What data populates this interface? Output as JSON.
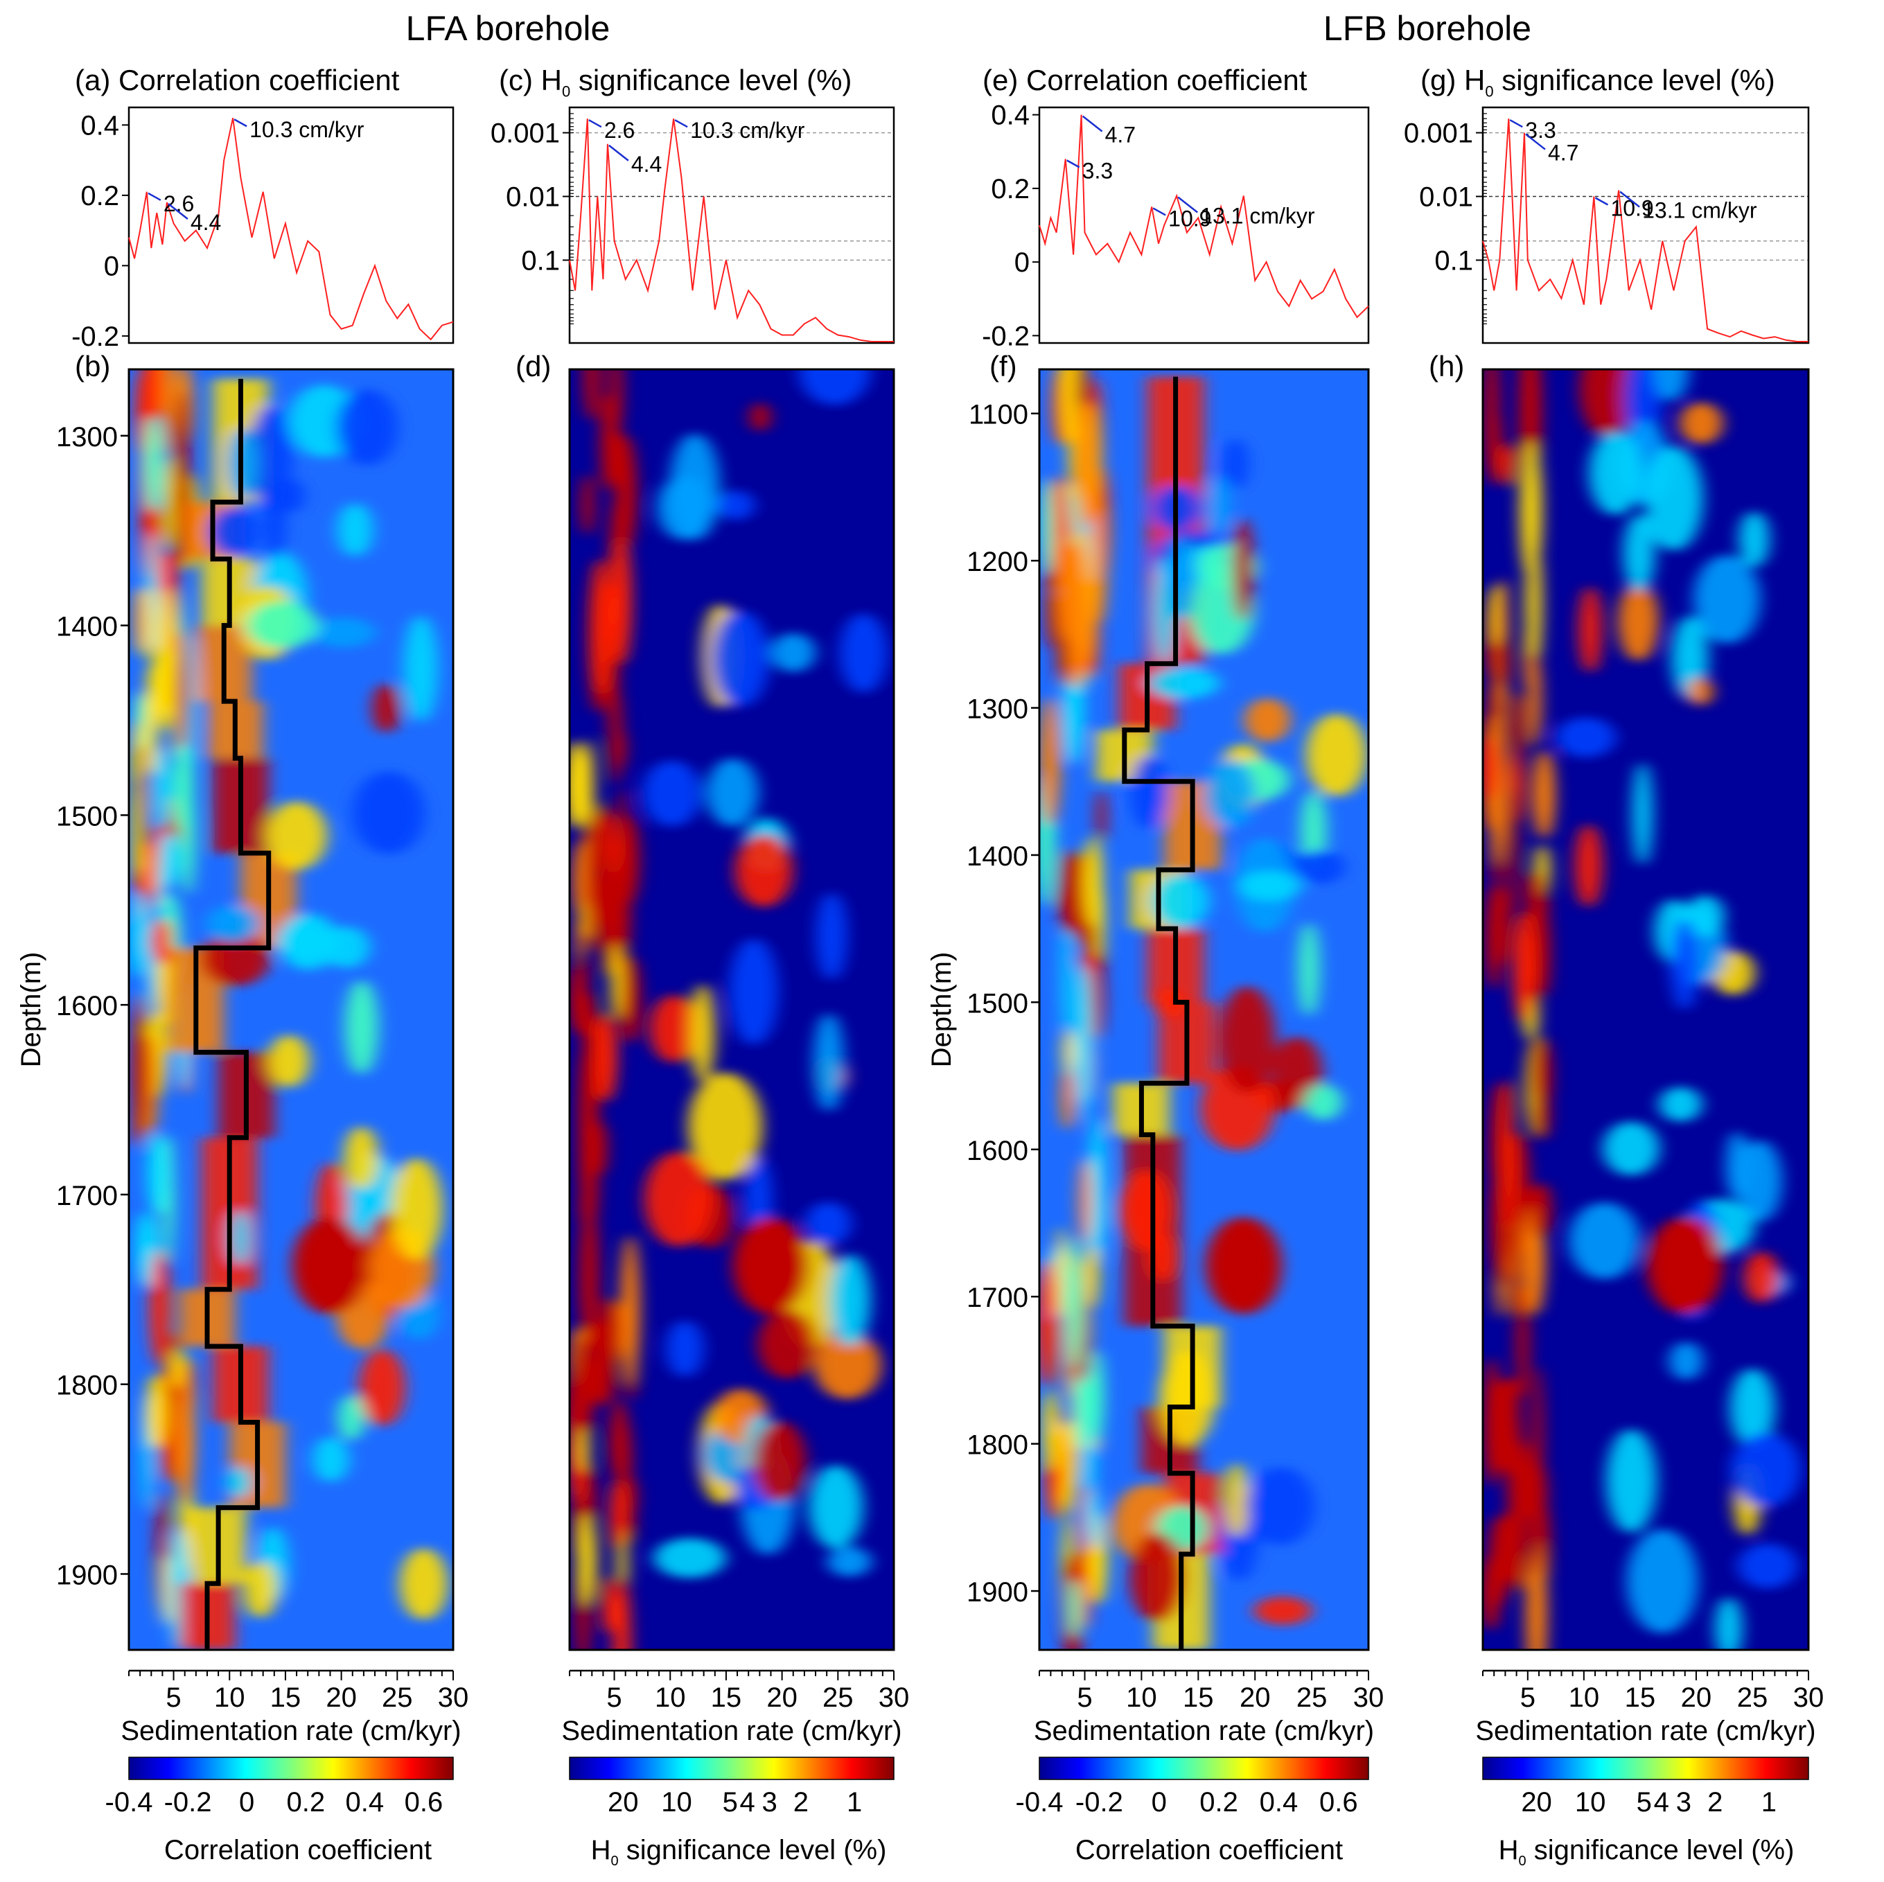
{
  "boreholes": [
    {
      "title": "LFA borehole"
    },
    {
      "title": "LFB borehole"
    }
  ],
  "panels": {
    "a": {
      "label": "(a)",
      "title": "Correlation coefficient"
    },
    "c": {
      "label": "(c)",
      "title_pre": "H",
      "title_sub": "0",
      "title_post": "significance level (%)"
    },
    "e": {
      "label": "(e)",
      "title": "Correlation coefficient"
    },
    "g": {
      "label": "(g)",
      "title_pre": "H",
      "title_sub": "0",
      "title_post": "significance level (%)"
    },
    "b": {
      "label": "(b)"
    },
    "d": {
      "label": "(d)"
    },
    "f": {
      "label": "(f)"
    },
    "h": {
      "label": "(h)"
    }
  },
  "xlabel": "Sedimentation rate (cm/kyr)",
  "ylabel": "Depth(m)",
  "colorbars": {
    "corr": {
      "ticks": [
        "-0.4",
        "-0.2",
        "0",
        "0.2",
        "0.4",
        "0.6"
      ],
      "title": "Correlation coefficient"
    },
    "sig": {
      "ticks": [
        "20",
        "10",
        "5",
        "4",
        "3",
        "2",
        "1"
      ],
      "title_pre": "H",
      "title_sub": "0",
      "title_post": "significance level (%)"
    }
  },
  "chart_data": [
    {
      "id": "a",
      "type": "line",
      "title": "Correlation coefficient",
      "xlim": [
        1,
        30
      ],
      "ylim": [
        -0.22,
        0.45
      ],
      "yticks": [
        "0.4",
        "0.2",
        "0",
        "-0.2"
      ],
      "series": [
        {
          "x": [
            1,
            1.5,
            2,
            2.6,
            3,
            3.5,
            4,
            4.4,
            5,
            6,
            7,
            8,
            9,
            9.5,
            10.3,
            11,
            12,
            13,
            14,
            15,
            16,
            17,
            18,
            19,
            20,
            21,
            22,
            23,
            24,
            25,
            26,
            27,
            28,
            29,
            30
          ],
          "y": [
            0.08,
            0.02,
            0.1,
            0.21,
            0.05,
            0.15,
            0.06,
            0.18,
            0.12,
            0.07,
            0.1,
            0.05,
            0.14,
            0.3,
            0.42,
            0.25,
            0.08,
            0.21,
            0.02,
            0.12,
            -0.02,
            0.07,
            0.04,
            -0.14,
            -0.18,
            -0.17,
            -0.08,
            0.0,
            -0.1,
            -0.15,
            -0.11,
            -0.18,
            -0.21,
            -0.17,
            -0.16
          ]
        }
      ],
      "annotations": [
        {
          "text": "2.6",
          "x": 2.6,
          "y": 0.21
        },
        {
          "text": "4.4",
          "x": 4.4,
          "y": 0.18
        },
        {
          "text": "10.3 cm/kyr",
          "x": 10.3,
          "y": 0.42
        }
      ]
    },
    {
      "id": "c",
      "type": "line",
      "title": "H0 significance level (%)",
      "yscale": "log",
      "xlim": [
        1,
        30
      ],
      "ylim": [
        0.0004,
        2.0
      ],
      "yticks": [
        "0.001",
        "0.01",
        "0.1"
      ],
      "dashed_levels": [
        0.001,
        0.01,
        0.05,
        0.1
      ],
      "series": [
        {
          "x": [
            1,
            1.5,
            2,
            2.6,
            3,
            3.5,
            4,
            4.4,
            5,
            6,
            7,
            8,
            9,
            9.5,
            10.3,
            11,
            12,
            13,
            14,
            15,
            16,
            17,
            18,
            19,
            20,
            21,
            22,
            23,
            24,
            25,
            26,
            27,
            28,
            29,
            30
          ],
          "y": [
            0.1,
            0.3,
            0.02,
            0.0006,
            0.3,
            0.01,
            0.2,
            0.0015,
            0.05,
            0.2,
            0.1,
            0.3,
            0.05,
            0.008,
            0.0006,
            0.005,
            0.3,
            0.01,
            0.6,
            0.1,
            0.8,
            0.3,
            0.5,
            1.2,
            1.5,
            1.5,
            1.0,
            0.8,
            1.2,
            1.5,
            1.6,
            1.8,
            1.9,
            1.9,
            1.9
          ]
        }
      ],
      "annotations": [
        {
          "text": "2.6",
          "x": 2.6,
          "y": 0.0006
        },
        {
          "text": "4.4",
          "x": 4.4,
          "y": 0.0015
        },
        {
          "text": "10.3 cm/kyr",
          "x": 10.3,
          "y": 0.0006
        }
      ]
    },
    {
      "id": "e",
      "type": "line",
      "title": "Correlation coefficient",
      "xlim": [
        1,
        30
      ],
      "ylim": [
        -0.22,
        0.42
      ],
      "yticks": [
        "0.4",
        "0.2",
        "0",
        "-0.2"
      ],
      "series": [
        {
          "x": [
            1,
            1.5,
            2,
            2.5,
            3.3,
            4,
            4.7,
            5,
            6,
            7,
            8,
            9,
            10,
            10.9,
            11.5,
            12,
            13.1,
            14,
            15,
            16,
            17,
            18,
            19,
            20,
            21,
            22,
            23,
            24,
            25,
            26,
            27,
            28,
            29,
            30
          ],
          "y": [
            0.1,
            0.05,
            0.12,
            0.08,
            0.28,
            0.02,
            0.4,
            0.08,
            0.02,
            0.05,
            0.0,
            0.08,
            0.02,
            0.15,
            0.05,
            0.1,
            0.18,
            0.08,
            0.12,
            0.02,
            0.15,
            0.05,
            0.18,
            -0.05,
            0.0,
            -0.08,
            -0.12,
            -0.05,
            -0.1,
            -0.08,
            -0.02,
            -0.1,
            -0.15,
            -0.12
          ]
        }
      ],
      "annotations": [
        {
          "text": "3.3",
          "x": 3.3,
          "y": 0.28
        },
        {
          "text": "4.7",
          "x": 4.7,
          "y": 0.4
        },
        {
          "text": "10.9",
          "x": 10.9,
          "y": 0.15
        },
        {
          "text": "13.1 cm/kyr",
          "x": 13.1,
          "y": 0.18
        }
      ]
    },
    {
      "id": "g",
      "type": "line",
      "title": "H0 significance level (%)",
      "yscale": "log",
      "xlim": [
        1,
        30
      ],
      "ylim": [
        0.0004,
        2.0
      ],
      "yticks": [
        "0.001",
        "0.01",
        "0.1"
      ],
      "dashed_levels": [
        0.001,
        0.01,
        0.05,
        0.1
      ],
      "series": [
        {
          "x": [
            1,
            1.5,
            2,
            2.5,
            3.3,
            4,
            4.7,
            5,
            6,
            7,
            8,
            9,
            10,
            10.9,
            11.5,
            12,
            13.1,
            14,
            15,
            16,
            17,
            18,
            19,
            20,
            21,
            22,
            23,
            24,
            25,
            26,
            27,
            28,
            29,
            30
          ],
          "y": [
            0.05,
            0.1,
            0.3,
            0.1,
            0.0006,
            0.3,
            0.001,
            0.1,
            0.3,
            0.2,
            0.4,
            0.1,
            0.5,
            0.01,
            0.5,
            0.2,
            0.008,
            0.3,
            0.1,
            0.6,
            0.05,
            0.3,
            0.05,
            0.03,
            1.2,
            1.4,
            1.6,
            1.3,
            1.5,
            1.7,
            1.6,
            1.8,
            1.9,
            1.9
          ]
        }
      ],
      "annotations": [
        {
          "text": "3.3",
          "x": 3.3,
          "y": 0.0006
        },
        {
          "text": "4.7",
          "x": 4.7,
          "y": 0.001
        },
        {
          "text": "10.9",
          "x": 10.9,
          "y": 0.01
        },
        {
          "text": "13.1 cm/kyr",
          "x": 13.1,
          "y": 0.008
        }
      ]
    },
    {
      "id": "b",
      "type": "heatmap",
      "colormap": "jet",
      "colorbar": "Correlation coefficient",
      "clim": [
        -0.4,
        0.7
      ],
      "xlim": [
        1,
        30
      ],
      "ylim": [
        1940,
        1265
      ],
      "xticks": [
        "5",
        "10",
        "15",
        "20",
        "25",
        "30"
      ],
      "yticks": [
        "1300",
        "1400",
        "1500",
        "1600",
        "1700",
        "1800",
        "1900"
      ],
      "path": {
        "depth": [
          1270,
          1335,
          1335,
          1365,
          1365,
          1400,
          1400,
          1440,
          1440,
          1470,
          1470,
          1520,
          1520,
          1570,
          1570,
          1625,
          1625,
          1670,
          1670,
          1750,
          1750,
          1780,
          1780,
          1820,
          1820,
          1865,
          1865,
          1905,
          1905,
          1940
        ],
        "rate": [
          11,
          11,
          8.5,
          8.5,
          10,
          10,
          9.5,
          9.5,
          10.5,
          10.5,
          11,
          11,
          13.5,
          13.5,
          7,
          7,
          11.5,
          11.5,
          10,
          10,
          8,
          8,
          11,
          11,
          12.5,
          12.5,
          9,
          9,
          8,
          8
        ]
      }
    },
    {
      "id": "d",
      "type": "heatmap",
      "colormap": "jet",
      "colorbar": "H0 significance level (%)",
      "xlim": [
        1,
        30
      ],
      "ylim": [
        1940,
        1265
      ],
      "xticks": [
        "5",
        "10",
        "15",
        "20",
        "25",
        "30"
      ]
    },
    {
      "id": "f",
      "type": "heatmap",
      "colormap": "jet",
      "colorbar": "Correlation coefficient",
      "clim": [
        -0.4,
        0.7
      ],
      "xlim": [
        1,
        30
      ],
      "ylim": [
        1940,
        1070
      ],
      "xticks": [
        "5",
        "10",
        "15",
        "20",
        "25",
        "30"
      ],
      "yticks": [
        "1100",
        "1200",
        "1300",
        "1400",
        "1500",
        "1600",
        "1700",
        "1800",
        "1900"
      ],
      "path": {
        "depth": [
          1075,
          1270,
          1270,
          1315,
          1315,
          1350,
          1350,
          1410,
          1410,
          1450,
          1450,
          1500,
          1500,
          1555,
          1555,
          1590,
          1590,
          1720,
          1720,
          1775,
          1775,
          1820,
          1820,
          1875,
          1875,
          1940
        ],
        "rate": [
          13,
          13,
          10.5,
          10.5,
          8.5,
          8.5,
          14.5,
          14.5,
          11.5,
          11.5,
          13,
          13,
          14,
          14,
          10,
          10,
          11,
          11,
          14.5,
          14.5,
          12.5,
          12.5,
          14.5,
          14.5,
          13.5,
          13.5
        ]
      }
    },
    {
      "id": "h",
      "type": "heatmap",
      "colormap": "jet",
      "colorbar": "H0 significance level (%)",
      "xlim": [
        1,
        30
      ],
      "ylim": [
        1940,
        1070
      ],
      "xticks": [
        "5",
        "10",
        "15",
        "20",
        "25",
        "30"
      ]
    }
  ]
}
